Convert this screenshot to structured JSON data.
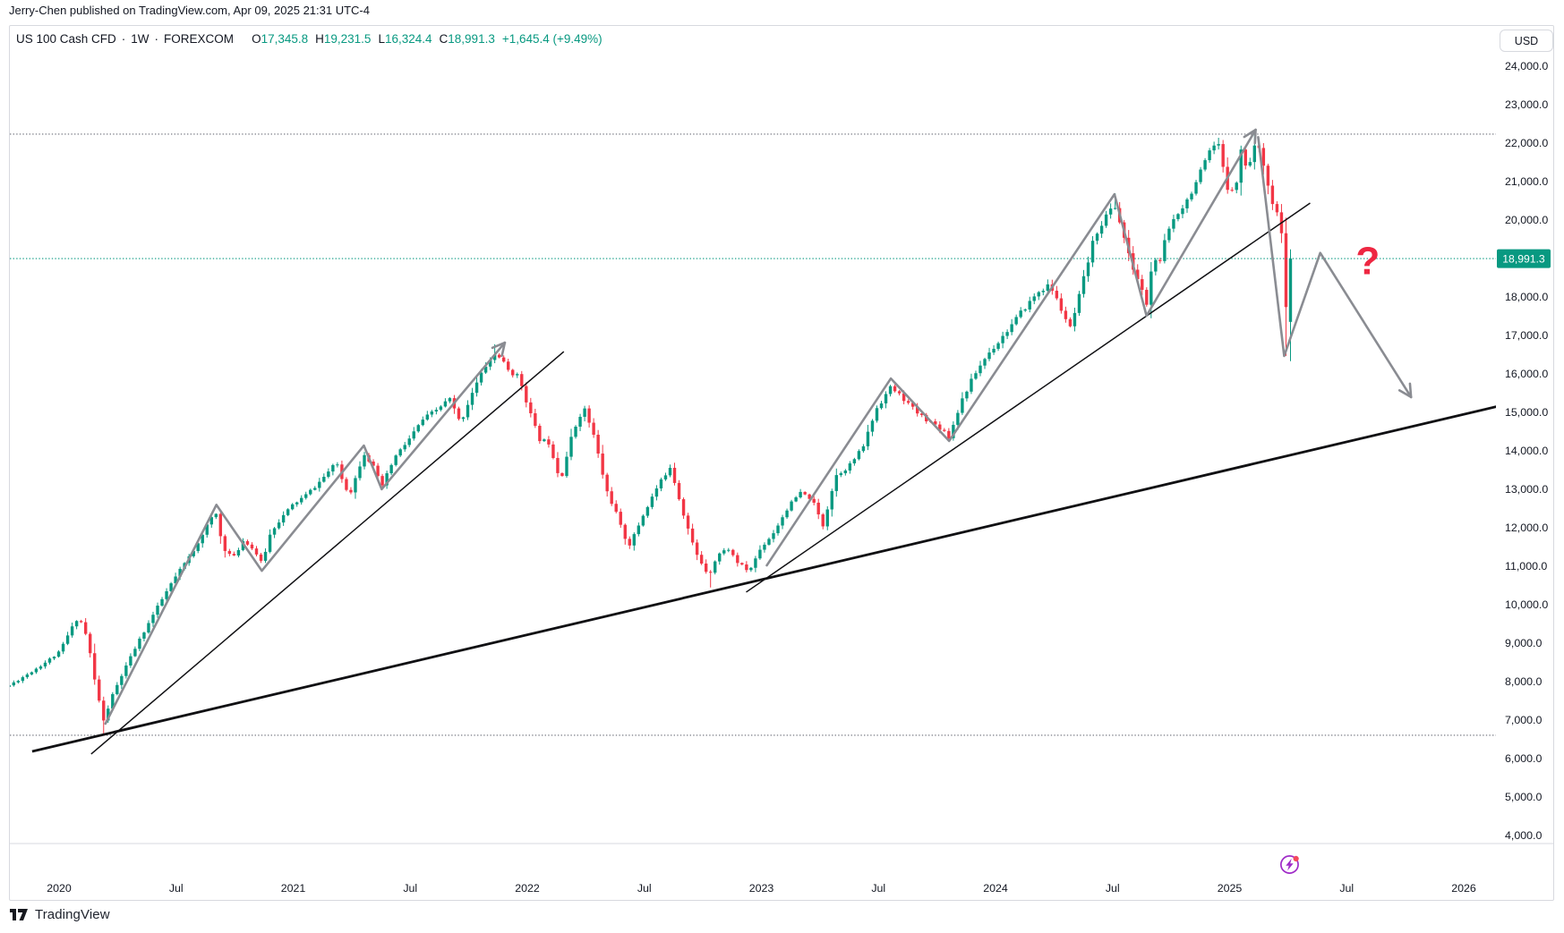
{
  "page": {
    "attribution": "Jerry-Chen published on TradingView.com, Apr 09, 2025 21:31 UTC-4",
    "brand": "TradingView"
  },
  "header": {
    "symbol": "US 100 Cash CFD",
    "interval": "1W",
    "exchange": "FOREXCOM",
    "separator": "·",
    "o_label": "O",
    "o": "17,345.8",
    "h_label": "H",
    "h": "19,231.5",
    "l_label": "L",
    "l": "16,324.4",
    "c_label": "C",
    "c": "18,991.3",
    "change": "+1,645.4 (+9.49%)"
  },
  "usd_button": {
    "label": "USD"
  },
  "chart_data": {
    "type": "candlestick",
    "symbol": "US 100 Cash CFD",
    "interval": "1W",
    "exchange": "FOREXCOM",
    "currency": "USD",
    "ohlc_values": {
      "open": 17345.8,
      "high": 19231.5,
      "low": 16324.4,
      "close": 18991.3,
      "change": 1645.4,
      "change_pct": 9.49
    },
    "price_badge": {
      "value": 18991.3,
      "text": "18,991.3"
    },
    "y_axis": {
      "min": 4000,
      "max": 24000,
      "step": 1000,
      "side": "right",
      "label_format": "#,##0.0"
    },
    "x_axis": {
      "ticks": [
        {
          "label": "2020",
          "t": 2020.0
        },
        {
          "label": "Jul",
          "t": 2020.5
        },
        {
          "label": "2021",
          "t": 2021.0
        },
        {
          "label": "Jul",
          "t": 2021.5
        },
        {
          "label": "2022",
          "t": 2022.0
        },
        {
          "label": "Jul",
          "t": 2022.5
        },
        {
          "label": "2023",
          "t": 2023.0
        },
        {
          "label": "Jul",
          "t": 2023.5
        },
        {
          "label": "2024",
          "t": 2024.0
        },
        {
          "label": "Jul",
          "t": 2024.5
        },
        {
          "label": "2025",
          "t": 2025.0
        },
        {
          "label": "Jul",
          "t": 2025.5
        },
        {
          "label": "2026",
          "t": 2026.0
        }
      ]
    },
    "levels": [
      {
        "price": 22226,
        "style": "dotted",
        "color": "gray"
      },
      {
        "price": 18991.3,
        "style": "dotted",
        "color": "teal"
      },
      {
        "price": 6600,
        "style": "dotted",
        "color": "gray"
      }
    ],
    "price_path": [
      [
        2019.78,
        7870
      ],
      [
        2019.855,
        8150
      ],
      [
        2019.931,
        8450
      ],
      [
        2020.0,
        8750
      ],
      [
        2020.046,
        9300
      ],
      [
        2020.084,
        9700
      ],
      [
        2020.122,
        9100
      ],
      [
        2020.153,
        8000
      ],
      [
        2020.191,
        6950
      ],
      [
        2020.225,
        7600
      ],
      [
        2020.275,
        8250
      ],
      [
        2020.332,
        8950
      ],
      [
        2020.408,
        9800
      ],
      [
        2020.485,
        10600
      ],
      [
        2020.573,
        11400
      ],
      [
        2020.645,
        12200
      ],
      [
        2020.672,
        12350
      ],
      [
        2020.698,
        11500
      ],
      [
        2020.744,
        11200
      ],
      [
        2020.79,
        11700
      ],
      [
        2020.84,
        11350
      ],
      [
        2020.866,
        11050
      ],
      [
        2020.905,
        11900
      ],
      [
        2020.95,
        12250
      ],
      [
        2021.0,
        12600
      ],
      [
        2021.057,
        12850
      ],
      [
        2021.115,
        13200
      ],
      [
        2021.164,
        13550
      ],
      [
        2021.191,
        13650
      ],
      [
        2021.218,
        13050
      ],
      [
        2021.248,
        12950
      ],
      [
        2021.302,
        13950
      ],
      [
        2021.34,
        13600
      ],
      [
        2021.378,
        13050
      ],
      [
        2021.431,
        13800
      ],
      [
        2021.496,
        14300
      ],
      [
        2021.553,
        14800
      ],
      [
        2021.611,
        15050
      ],
      [
        2021.668,
        15350
      ],
      [
        2021.714,
        14700
      ],
      [
        2021.763,
        15500
      ],
      [
        2021.821,
        16200
      ],
      [
        2021.87,
        16550
      ],
      [
        2021.916,
        16100
      ],
      [
        2021.966,
        15900
      ],
      [
        2022.011,
        15000
      ],
      [
        2022.05,
        14300
      ],
      [
        2022.095,
        14200
      ],
      [
        2022.141,
        13200
      ],
      [
        2022.191,
        14400
      ],
      [
        2022.24,
        15150
      ],
      [
        2022.286,
        14350
      ],
      [
        2022.336,
        13000
      ],
      [
        2022.385,
        12300
      ],
      [
        2022.41,
        11800
      ],
      [
        2022.439,
        11550
      ],
      [
        2022.489,
        12250
      ],
      [
        2022.546,
        12950
      ],
      [
        2022.611,
        13600
      ],
      [
        2022.66,
        12500
      ],
      [
        2022.718,
        11350
      ],
      [
        2022.775,
        10750
      ],
      [
        2022.813,
        11300
      ],
      [
        2022.859,
        11450
      ],
      [
        2022.897,
        11100
      ],
      [
        2022.947,
        10850
      ],
      [
        2022.996,
        11450
      ],
      [
        2023.05,
        11850
      ],
      [
        2023.111,
        12500
      ],
      [
        2023.164,
        12900
      ],
      [
        2023.214,
        12750
      ],
      [
        2023.263,
        12050
      ],
      [
        2023.317,
        13350
      ],
      [
        2023.374,
        13600
      ],
      [
        2023.431,
        14050
      ],
      [
        2023.492,
        15100
      ],
      [
        2023.553,
        15650
      ],
      [
        2023.607,
        15350
      ],
      [
        2023.66,
        15000
      ],
      [
        2023.721,
        14750
      ],
      [
        2023.775,
        14550
      ],
      [
        2023.802,
        14350
      ],
      [
        2023.851,
        15250
      ],
      [
        2023.912,
        16000
      ],
      [
        2023.966,
        16500
      ],
      [
        2024.015,
        16850
      ],
      [
        2024.073,
        17300
      ],
      [
        2024.13,
        17750
      ],
      [
        2024.187,
        18150
      ],
      [
        2024.233,
        18300
      ],
      [
        2024.282,
        17650
      ],
      [
        2024.321,
        17150
      ],
      [
        2024.37,
        18300
      ],
      [
        2024.424,
        19600
      ],
      [
        2024.473,
        20100
      ],
      [
        2024.508,
        20400
      ],
      [
        2024.538,
        19800
      ],
      [
        2024.576,
        18900
      ],
      [
        2024.615,
        18350
      ],
      [
        2024.645,
        17800
      ],
      [
        2024.676,
        19100
      ],
      [
        2024.699,
        18750
      ],
      [
        2024.729,
        19600
      ],
      [
        2024.767,
        20100
      ],
      [
        2024.817,
        20500
      ],
      [
        2024.866,
        21100
      ],
      [
        2024.912,
        21700
      ],
      [
        2024.95,
        22000
      ],
      [
        2024.989,
        20800
      ],
      [
        2025.027,
        20900
      ],
      [
        2025.05,
        21850
      ],
      [
        2025.073,
        21300
      ],
      [
        2025.111,
        22000
      ],
      [
        2025.141,
        21600
      ],
      [
        2025.172,
        20700
      ],
      [
        2025.195,
        20100
      ],
      [
        2025.212,
        20250
      ],
      [
        2025.228,
        19250
      ],
      [
        2025.244,
        17350
      ],
      [
        2025.26,
        18991.3
      ]
    ],
    "candles": {
      "start_t": 2019.787,
      "end_t": 2025.26,
      "count": 286,
      "seed": 11
    },
    "wick_overrides": [
      {
        "t": 2020.191,
        "low": 6600
      },
      {
        "t": 2021.87,
        "high": 16764
      },
      {
        "t": 2022.775,
        "low": 10440
      },
      {
        "t": 2024.508,
        "high": 20690
      },
      {
        "t": 2024.95,
        "high": 22133
      },
      {
        "t": 2025.111,
        "high": 22226
      },
      {
        "t": 2025.244,
        "low": 16460
      }
    ],
    "trendlines": [
      {
        "name": "long-term-support",
        "weight": "thick",
        "from": [
          2019.885,
          6180
        ],
        "to": [
          2026.141,
          15145
        ]
      },
      {
        "name": "support-2020-2021",
        "weight": "thin",
        "from": [
          2020.137,
          6110
        ],
        "to": [
          2022.156,
          16573
        ]
      },
      {
        "name": "support-2023-2025",
        "weight": "thin",
        "from": [
          2022.935,
          10320
        ],
        "to": [
          2025.344,
          20435
        ]
      }
    ],
    "zigzags": [
      {
        "name": "zigzag-bull-leg-2020-2021",
        "arrow_end": true,
        "points": [
          [
            2020.198,
            6900
          ],
          [
            2020.672,
            12590
          ],
          [
            2020.866,
            10875
          ],
          [
            2021.302,
            14130
          ],
          [
            2021.378,
            12995
          ],
          [
            2021.904,
            16805
          ]
        ]
      },
      {
        "name": "zigzag-bull-leg-2023-2025",
        "arrow_end": true,
        "points": [
          [
            2023.023,
            11015
          ],
          [
            2023.553,
            15875
          ],
          [
            2023.802,
            14250
          ],
          [
            2024.508,
            20665
          ],
          [
            2024.645,
            17505
          ],
          [
            2025.111,
            22340
          ]
        ]
      },
      {
        "name": "zigzag-projected-path",
        "arrow_end": true,
        "points": [
          [
            2025.122,
            22150
          ],
          [
            2025.233,
            16460
          ],
          [
            2025.387,
            19140
          ],
          [
            2025.775,
            15390
          ]
        ]
      }
    ],
    "annotations": {
      "question_mark": {
        "text": "?",
        "t": 2025.59,
        "price": 18940,
        "color": "#ee2742"
      }
    },
    "event_marker": {
      "t": 2025.256,
      "icon": "lightning-circle-icon",
      "ring": "#a02cc8",
      "dot": "#f5485d"
    },
    "colors": {
      "up": "#089981",
      "down": "#f23645",
      "teal": "#089981",
      "gray": "#8a8c92",
      "gray_dotted": "#6b6e78",
      "black": "#101013",
      "axis_text": "#131722",
      "border": "#d7d9df",
      "badge_bg": "#089981",
      "badge_text": "#ffffff"
    }
  }
}
